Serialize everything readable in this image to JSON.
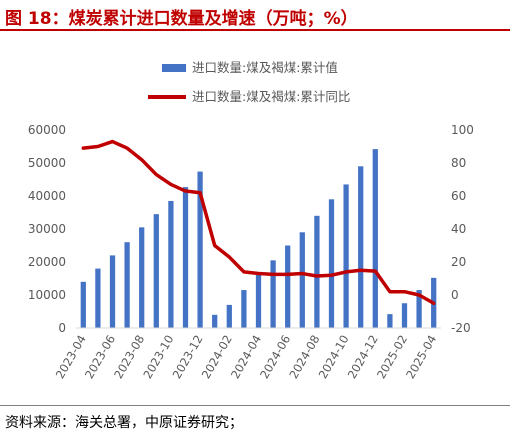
{
  "figure": {
    "title": "图 18：煤炭累计进口数量及增速（万吨；%）",
    "source": "资料来源：海关总署，中原证券研究；"
  },
  "chart_data": {
    "type": "bar",
    "categories": [
      "2023-04",
      "2023-05",
      "2023-06",
      "2023-07",
      "2023-08",
      "2023-09",
      "2023-10",
      "2023-11",
      "2023-12",
      "2024-01",
      "2024-02",
      "2024-03",
      "2024-04",
      "2024-05",
      "2024-06",
      "2024-07",
      "2024-08",
      "2024-09",
      "2024-10",
      "2024-11",
      "2024-12",
      "2025-01",
      "2025-02",
      "2025-03",
      "2025-04"
    ],
    "x_tick_labels": [
      "2023-04",
      "2023-06",
      "2023-08",
      "2023-10",
      "2023-12",
      "2024-02",
      "2024-04",
      "2024-06",
      "2024-08",
      "2024-10",
      "2024-12",
      "2025-02",
      "2025-04"
    ],
    "series": [
      {
        "name": "进口数量:煤及褐煤:累计值",
        "type": "bar",
        "axis": "left",
        "color": "#4472c4",
        "values": [
          14000,
          18000,
          22000,
          26000,
          30500,
          34500,
          38500,
          42700,
          47400,
          4000,
          7000,
          11500,
          16500,
          20500,
          25000,
          29000,
          34000,
          39000,
          43500,
          49000,
          54200,
          4200,
          7500,
          11500,
          15200
        ]
      },
      {
        "name": "进口数量:煤及褐煤:累计同比",
        "type": "line",
        "axis": "right",
        "color": "#c00000",
        "values": [
          89,
          90,
          93,
          89,
          82,
          73,
          67,
          63,
          62,
          30,
          23,
          14,
          13,
          12.5,
          12.5,
          13,
          11.5,
          12,
          14,
          15,
          14.5,
          2,
          2,
          0,
          -5
        ]
      }
    ],
    "y_left": {
      "min": 0,
      "max": 60000,
      "ticks": [
        0,
        10000,
        20000,
        30000,
        40000,
        50000,
        60000
      ]
    },
    "y_right": {
      "min": -20,
      "max": 100,
      "ticks": [
        -20,
        0,
        20,
        40,
        60,
        80,
        100
      ]
    },
    "grid": false,
    "legend_position": "top"
  }
}
